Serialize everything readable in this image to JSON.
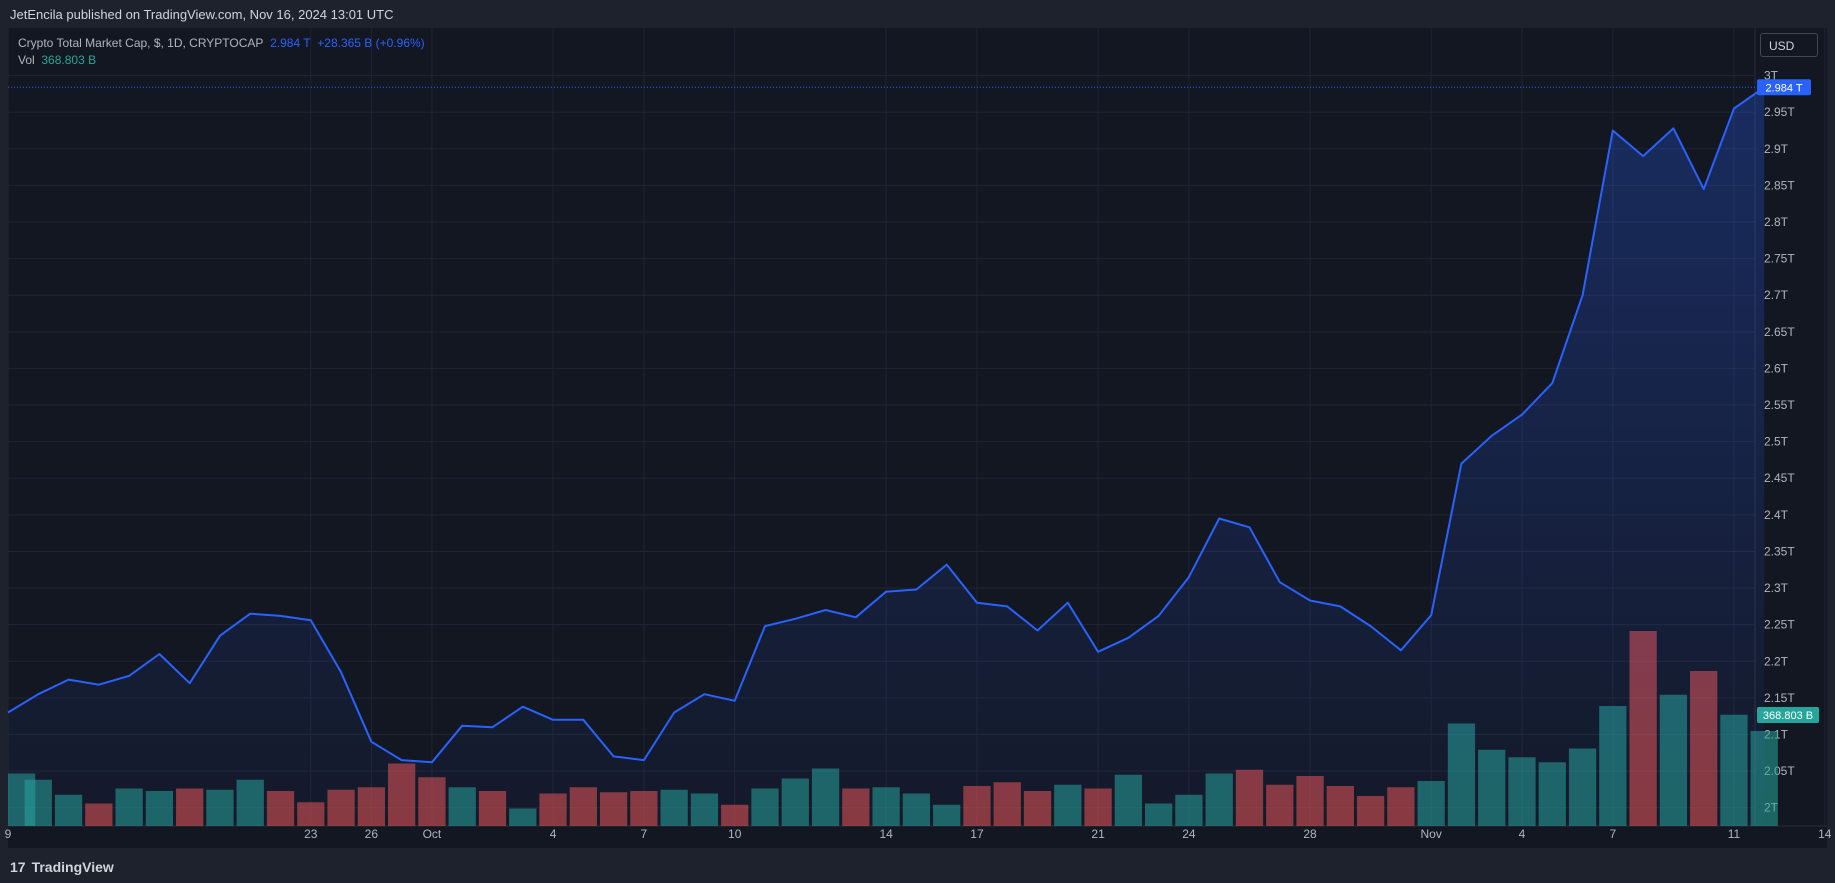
{
  "header": {
    "published": "JetEncila published on TradingView.com, Nov 16, 2024 13:01 UTC"
  },
  "legend": {
    "symbol": "Crypto Total Market Cap, $, 1D, CRYPTOCAP",
    "last": "2.984 T",
    "change": "+28.365 B (+0.96%)",
    "vol_label": "Vol",
    "vol_value": "368.803 B"
  },
  "currency_button": "USD",
  "footer": {
    "logo": "17",
    "brand": "TradingView"
  },
  "colors": {
    "line": "#2962ff",
    "up_vol": "#26a69a",
    "down_vol": "#ef5350",
    "price_tag_bg": "#2962ff",
    "vol_tag_bg": "#26a69a",
    "pane_bg": "#131722"
  },
  "chart_data": {
    "type": "area",
    "x_ticks": [
      "9",
      "23",
      "26",
      "Oct",
      "4",
      "7",
      "10",
      "14",
      "17",
      "21",
      "24",
      "28",
      "Nov",
      "4",
      "7",
      "11",
      "14"
    ],
    "y_ticks": [
      "2T",
      "2.05T",
      "2.1T",
      "2.15T",
      "2.2T",
      "2.25T",
      "2.3T",
      "2.35T",
      "2.4T",
      "2.45T",
      "2.5T",
      "2.55T",
      "2.6T",
      "2.65T",
      "2.7T",
      "2.75T",
      "2.8T",
      "2.85T",
      "2.9T",
      "2.95T",
      "3T"
    ],
    "ylim": [
      1.975,
      3.065
    ],
    "last_price_label": "2.984 T",
    "last_volume_label": "368.803 B",
    "series": [
      {
        "name": "Crypto Total Market Cap",
        "values": [
          2.13,
          2.155,
          2.175,
          2.168,
          2.18,
          2.21,
          2.17,
          2.235,
          2.265,
          2.262,
          2.256,
          2.185,
          2.09,
          2.065,
          2.062,
          2.112,
          2.11,
          2.138,
          2.12,
          2.12,
          2.07,
          2.065,
          2.13,
          2.155,
          2.146,
          2.248,
          2.258,
          2.27,
          2.26,
          2.295,
          2.298,
          2.332,
          2.28,
          2.275,
          2.242,
          2.28,
          2.213,
          2.232,
          2.262,
          2.315,
          2.395,
          2.383,
          2.308,
          2.283,
          2.275,
          2.248,
          2.215,
          2.263,
          2.47,
          2.508,
          2.537,
          2.58,
          2.7,
          2.925,
          2.89,
          2.928,
          2.845,
          2.955,
          2.984
        ]
      },
      {
        "name": "Vol",
        "volume": [
          42,
          37,
          25,
          18,
          30,
          28,
          30,
          29,
          37,
          28,
          19,
          29,
          31,
          50,
          39,
          31,
          28,
          14,
          26,
          31,
          27,
          28,
          29,
          26,
          17,
          30,
          38,
          46,
          30,
          31,
          26,
          17,
          32,
          35,
          28,
          33,
          30,
          41,
          18,
          25,
          42,
          45,
          33,
          40,
          32,
          24,
          31,
          36,
          82,
          61,
          55,
          51,
          62,
          96,
          156,
          105,
          124,
          89,
          76
        ],
        "direction": [
          "up",
          "up",
          "up",
          "down",
          "up",
          "up",
          "down",
          "up",
          "up",
          "down",
          "down",
          "down",
          "down",
          "down",
          "down",
          "up",
          "down",
          "up",
          "down",
          "down",
          "down",
          "down",
          "up",
          "up",
          "down",
          "up",
          "up",
          "up",
          "down",
          "up",
          "up",
          "up",
          "down",
          "down",
          "down",
          "up",
          "down",
          "up",
          "up",
          "up",
          "up",
          "down",
          "down",
          "down",
          "down",
          "down",
          "down",
          "up",
          "up",
          "up",
          "up",
          "up",
          "up",
          "up",
          "down",
          "up",
          "down",
          "up",
          "up"
        ]
      }
    ]
  }
}
